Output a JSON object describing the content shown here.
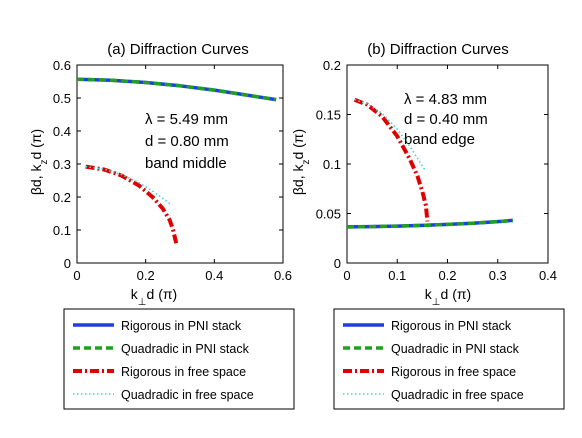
{
  "chart_data": [
    {
      "type": "line",
      "title": "(a)  Diffraction Curves",
      "xlabel": "k⊥d (π)",
      "ylabel": "βd,  k_z d (π)",
      "xlim": [
        0,
        0.6
      ],
      "ylim": [
        0,
        0.6
      ],
      "xticks": [
        "0",
        "0.2",
        "0.4",
        "0.6"
      ],
      "yticks": [
        "0",
        "0.1",
        "0.2",
        "0.3",
        "0.4",
        "0.5",
        "0.6"
      ],
      "grid": false,
      "annotations": [
        "λ = 5.49 mm",
        "d = 0.80 mm",
        "band middle"
      ],
      "series": [
        {
          "name": "Rigorous in PNI stack",
          "color": "#1f3fe0",
          "style": "solid",
          "x": [
            0,
            0.1,
            0.2,
            0.3,
            0.4,
            0.5,
            0.58
          ],
          "y": [
            0.557,
            0.554,
            0.547,
            0.537,
            0.524,
            0.508,
            0.495
          ]
        },
        {
          "name": "Quadradic in PNI stack",
          "color": "#1fa11f",
          "style": "dashed",
          "x": [
            0,
            0.1,
            0.2,
            0.3,
            0.4,
            0.5,
            0.58
          ],
          "y": [
            0.557,
            0.554,
            0.547,
            0.537,
            0.524,
            0.508,
            0.495
          ]
        },
        {
          "name": "Rigorous in free space",
          "color": "#e00000",
          "style": "dashdot",
          "x": [
            0.025,
            0.08,
            0.13,
            0.18,
            0.22,
            0.25,
            0.27,
            0.28,
            0.289
          ],
          "y": [
            0.292,
            0.283,
            0.265,
            0.235,
            0.2,
            0.165,
            0.13,
            0.1,
            0.06
          ]
        },
        {
          "name": "Quadradic in free space",
          "color": "#3fd6d6",
          "style": "dotted",
          "x": [
            0.025,
            0.08,
            0.13,
            0.18,
            0.22,
            0.25,
            0.27
          ],
          "y": [
            0.292,
            0.284,
            0.268,
            0.244,
            0.218,
            0.196,
            0.18
          ]
        }
      ]
    },
    {
      "type": "line",
      "title": "(b)  Diffraction Curves",
      "xlabel": "k⊥d (π)",
      "ylabel": "βd,  k_z d (π)",
      "xlim": [
        0,
        0.4
      ],
      "ylim": [
        0,
        0.2
      ],
      "xticks": [
        "0",
        "0.1",
        "0.2",
        "0.3",
        "0.4"
      ],
      "yticks": [
        "0",
        "0.05",
        "0.1",
        "0.15",
        "0.2"
      ],
      "grid": false,
      "annotations": [
        "λ = 4.83 mm",
        "d = 0.40 mm",
        "band edge"
      ],
      "series": [
        {
          "name": "Rigorous in PNI stack",
          "color": "#1f3fe0",
          "style": "solid",
          "x": [
            0,
            0.05,
            0.1,
            0.15,
            0.2,
            0.25,
            0.3,
            0.33
          ],
          "y": [
            0.0365,
            0.0368,
            0.0373,
            0.038,
            0.039,
            0.0402,
            0.0418,
            0.043
          ]
        },
        {
          "name": "Quadradic in PNI stack",
          "color": "#1fa11f",
          "style": "dashed",
          "x": [
            0,
            0.05,
            0.1,
            0.15,
            0.2,
            0.25,
            0.3,
            0.33
          ],
          "y": [
            0.0365,
            0.0368,
            0.0373,
            0.038,
            0.039,
            0.0402,
            0.0418,
            0.043
          ]
        },
        {
          "name": "Rigorous in free space",
          "color": "#e00000",
          "style": "dashdot",
          "x": [
            0.015,
            0.04,
            0.07,
            0.1,
            0.125,
            0.14,
            0.15,
            0.157,
            0.16
          ],
          "y": [
            0.165,
            0.16,
            0.148,
            0.128,
            0.105,
            0.088,
            0.072,
            0.058,
            0.042
          ]
        },
        {
          "name": "Quadradic in free space",
          "color": "#3fd6d6",
          "style": "dotted",
          "x": [
            0.015,
            0.04,
            0.07,
            0.1,
            0.125,
            0.14,
            0.155
          ],
          "y": [
            0.165,
            0.161,
            0.151,
            0.135,
            0.118,
            0.106,
            0.094
          ]
        }
      ]
    }
  ]
}
